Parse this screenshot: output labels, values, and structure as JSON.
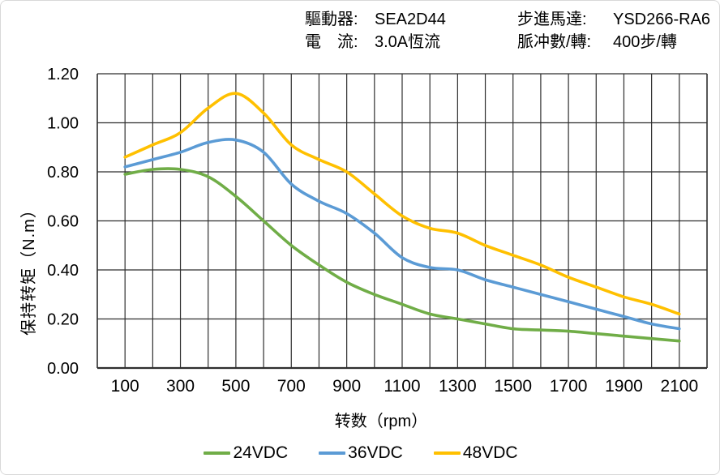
{
  "header": {
    "fields": [
      {
        "label": "驅動器:",
        "value": "SEA2D44"
      },
      {
        "label": "電　流:",
        "value": "3.0A恆流"
      },
      {
        "label": "步進馬達:",
        "value": "YSD266-RA6"
      },
      {
        "label": "脈冲數/轉:",
        "value": "400步/轉"
      }
    ]
  },
  "chart_data": {
    "type": "line",
    "title": "",
    "xlabel": "转数（rpm）",
    "ylabel": "保持转矩（N.m）",
    "xlim": [
      0,
      2200
    ],
    "ylim": [
      0,
      1.2
    ],
    "grid": true,
    "legend_position": "bottom",
    "x": [
      100,
      200,
      300,
      400,
      500,
      600,
      700,
      800,
      900,
      1000,
      1100,
      1200,
      1300,
      1400,
      1500,
      1600,
      1700,
      1800,
      1900,
      2000,
      2100
    ],
    "series": [
      {
        "name": "24VDC",
        "color": "#70AD47",
        "values": [
          0.79,
          0.81,
          0.81,
          0.78,
          0.7,
          0.6,
          0.5,
          0.42,
          0.35,
          0.3,
          0.26,
          0.22,
          0.2,
          0.18,
          0.16,
          0.155,
          0.15,
          0.14,
          0.13,
          0.12,
          0.11
        ]
      },
      {
        "name": "36VDC",
        "color": "#5B9BD5",
        "values": [
          0.82,
          0.85,
          0.88,
          0.92,
          0.93,
          0.88,
          0.75,
          0.68,
          0.63,
          0.55,
          0.45,
          0.41,
          0.4,
          0.36,
          0.33,
          0.3,
          0.27,
          0.24,
          0.21,
          0.18,
          0.16
        ]
      },
      {
        "name": "48VDC",
        "color": "#FFC000",
        "values": [
          0.86,
          0.91,
          0.96,
          1.06,
          1.12,
          1.04,
          0.91,
          0.85,
          0.8,
          0.71,
          0.62,
          0.57,
          0.55,
          0.5,
          0.46,
          0.42,
          0.37,
          0.33,
          0.29,
          0.26,
          0.22
        ]
      }
    ],
    "x_tick_labels": [
      "100",
      "300",
      "500",
      "700",
      "900",
      "1100",
      "1300",
      "1500",
      "1700",
      "1900",
      "2100"
    ],
    "y_tick_labels": [
      "0.00",
      "0.20",
      "0.40",
      "0.60",
      "0.80",
      "1.00",
      "1.20"
    ]
  }
}
